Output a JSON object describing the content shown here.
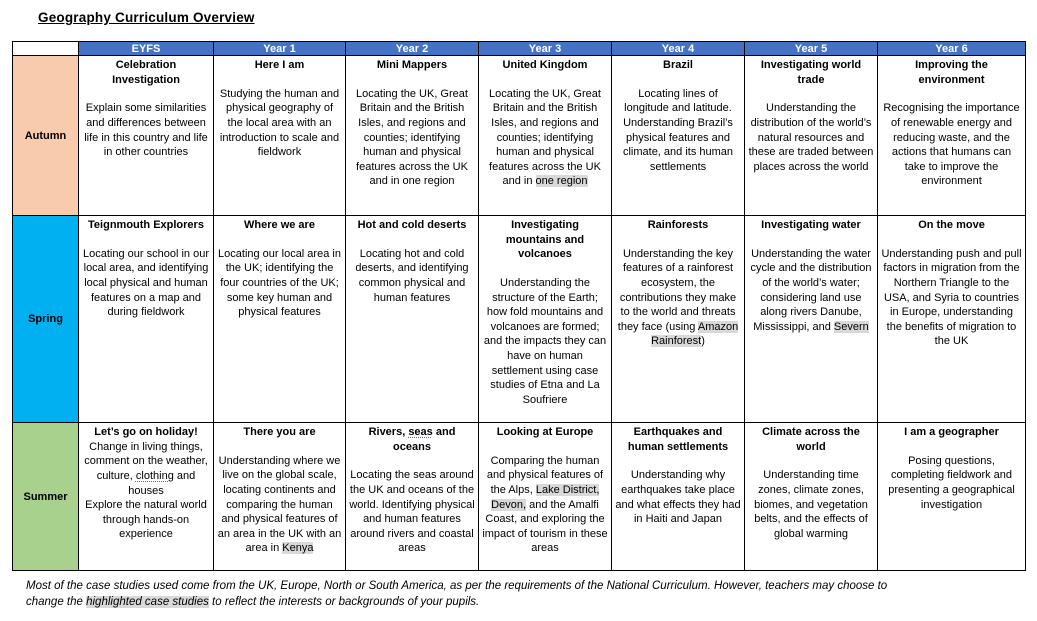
{
  "page": {
    "title": "Geography Curriculum Overview"
  },
  "colors": {
    "header_bg": "#4472C4",
    "header_text": "#FFFFFF",
    "autumn": "#F8CBAD",
    "spring": "#00B0F0",
    "summer": "#A9D18E",
    "highlight": "#D9D9D9"
  },
  "table": {
    "columns": [
      "",
      "EYFS",
      "Year 1",
      "Year 2",
      "Year 3",
      "Year 4",
      "Year 5",
      "Year 6"
    ],
    "rows": [
      {
        "season": "Autumn",
        "color": "#F8CBAD",
        "cells": [
          {
            "title": [
              {
                "t": "Celebration Investigation"
              }
            ],
            "gap": true,
            "body": [
              [
                {
                  "t": "Explain some similarities and differences between life in this country and life in other countries"
                }
              ]
            ]
          },
          {
            "title": [
              {
                "t": "Here I am"
              }
            ],
            "gap": true,
            "body": [
              [
                {
                  "t": "Studying the human and"
                }
              ],
              [
                {
                  "t": "physical geography of the local area with an introduction to scale and fieldwork"
                }
              ]
            ]
          },
          {
            "title": [
              {
                "t": "Mini Mappers"
              }
            ],
            "gap": true,
            "body": [
              [
                {
                  "t": "Locating the UK, Great Britain and the British Isles, and regions and counties; identifying human and physical features across the UK and in one region"
                }
              ]
            ]
          },
          {
            "title": [
              {
                "t": "United Kingdom"
              }
            ],
            "gap": true,
            "body": [
              [
                {
                  "t": "Locating the UK, Great Britain and the British Isles, and regions and counties; identifying human and physical features across the UK and in "
                },
                {
                  "t": "one region",
                  "h": true
                }
              ]
            ]
          },
          {
            "title": [
              {
                "t": "Brazil"
              }
            ],
            "gap": true,
            "body": [
              [
                {
                  "t": "Locating lines of longitude and latitude. Understanding Brazil’s physical features and climate, and its human settlements"
                }
              ]
            ]
          },
          {
            "title": [
              {
                "t": "Investigating world trade"
              }
            ],
            "gap": true,
            "body": [
              [
                {
                  "t": "Understanding the distribution of the world’s natural resources and these are traded between places across the world"
                }
              ]
            ]
          },
          {
            "title": [
              {
                "t": "Improving the environment"
              }
            ],
            "gap": true,
            "body": [
              [
                {
                  "t": "Recognising the importance of renewable energy and reducing waste, and the actions that humans can take to improve the environment"
                }
              ]
            ]
          }
        ]
      },
      {
        "season": "Spring",
        "color": "#00B0F0",
        "cells": [
          {
            "title": [
              {
                "t": "Teignmouth Explorers"
              }
            ],
            "gap": true,
            "body": [
              [
                {
                  "t": "Locating our school in our local area, and identifying local physical and human features on a map and during fieldwork"
                }
              ]
            ]
          },
          {
            "title": [
              {
                "t": "Where we are"
              }
            ],
            "gap": true,
            "body": [
              [
                {
                  "t": "Locating our local area in the UK; identifying the four countries of the UK; some key human and physical features"
                }
              ]
            ]
          },
          {
            "title": [
              {
                "t": "Hot and cold deserts"
              }
            ],
            "gap": true,
            "body": [
              [
                {
                  "t": "Locating hot and cold deserts, and identifying common physical and human features"
                }
              ]
            ]
          },
          {
            "title": [
              {
                "t": "Investigating mountains and volcanoes"
              }
            ],
            "gap": true,
            "body": [
              [
                {
                  "t": "Understanding the structure of the Earth; how fold mountains and volcanoes are formed; and the impacts they can have on human settlement using case studies of Etna and La Soufriere"
                }
              ]
            ]
          },
          {
            "title": [
              {
                "t": "Rainforests"
              }
            ],
            "gap": true,
            "body": [
              [
                {
                  "t": "Understanding the key features of a rainforest ecosystem, the contributions they make to the world and threats they face (using "
                },
                {
                  "t": "Amazon Rainforest",
                  "h": true
                },
                {
                  "t": ")"
                }
              ]
            ]
          },
          {
            "title": [
              {
                "t": "Investigating water"
              }
            ],
            "gap": true,
            "body": [
              [
                {
                  "t": "Understanding the water cycle and the distribution of the world’s water; considering land use along rivers Danube, Mississippi, and "
                },
                {
                  "t": "Severn",
                  "h": true
                }
              ]
            ]
          },
          {
            "title": [
              {
                "t": "On the move"
              }
            ],
            "gap": true,
            "body": [
              [
                {
                  "t": "Understanding push and pull factors in migration from the Northern Triangle to the USA, and Syria to countries in Europe, understanding the benefits of migration to the UK"
                }
              ]
            ]
          }
        ]
      },
      {
        "season": "Summer",
        "color": "#A9D18E",
        "cells": [
          {
            "title": [
              {
                "t": "Let’s go on holiday!"
              }
            ],
            "gap": false,
            "body": [
              [
                {
                  "t": "Change in living things, comment on the weather, culture, "
                },
                {
                  "t": "clothing",
                  "sq": true
                },
                {
                  "t": " and houses"
                }
              ],
              [
                {
                  "t": "Explore the natural world through hands-on experience"
                }
              ]
            ]
          },
          {
            "title": [
              {
                "t": "There you are"
              }
            ],
            "gap": true,
            "body": [
              [
                {
                  "t": "Understanding where we live on the global scale, locating continents and comparing the human and physical features of an area in the UK with an area in "
                },
                {
                  "t": "Kenya",
                  "h": true
                }
              ]
            ]
          },
          {
            "title": [
              {
                "t": "Rivers, "
              },
              {
                "t": "seas",
                "sq": true
              },
              {
                "t": " and oceans"
              }
            ],
            "gap": true,
            "body": [
              [
                {
                  "t": "Locating the seas around the UK and oceans of the world. Identifying physical and human features around rivers and coastal areas"
                }
              ]
            ]
          },
          {
            "title": [
              {
                "t": "Looking at Europe"
              }
            ],
            "gap": true,
            "body": [
              [
                {
                  "t": "Comparing the human and physical features of the Alps, "
                },
                {
                  "t": "Lake District,",
                  "h": true
                },
                {
                  "t": " "
                },
                {
                  "t": "Devon,",
                  "h": true
                },
                {
                  "t": " and the Amalfi Coast, and exploring the impact of tourism in these areas"
                }
              ]
            ]
          },
          {
            "title": [
              {
                "t": "Earthquakes and human settlements"
              }
            ],
            "gap": true,
            "body": [
              [
                {
                  "t": "Understanding why earthquakes take place and what effects they had in Haiti and Japan"
                }
              ]
            ]
          },
          {
            "title": [
              {
                "t": "Climate across the world"
              }
            ],
            "gap": true,
            "body": [
              [
                {
                  "t": "Understanding time zones, climate zones, biomes, and vegetation belts, and the effects of global warming"
                }
              ]
            ]
          },
          {
            "title": [
              {
                "t": "I am a geographer"
              }
            ],
            "gap": true,
            "body": [
              [
                {
                  "t": "Posing questions, completing fieldwork and presenting a geographical investigation"
                }
              ]
            ]
          }
        ]
      }
    ]
  },
  "footer": {
    "lines": [
      [
        {
          "t": "Most of the case studies used come from the UK, Europe, North or South America, as per the requirements of the National Curriculum. However, teachers may choose to"
        }
      ],
      [
        {
          "t": "change the "
        },
        {
          "t": "highlighted case studies",
          "h": true
        },
        {
          "t": " to reflect the interests or backgrounds of your pupils."
        }
      ]
    ]
  }
}
